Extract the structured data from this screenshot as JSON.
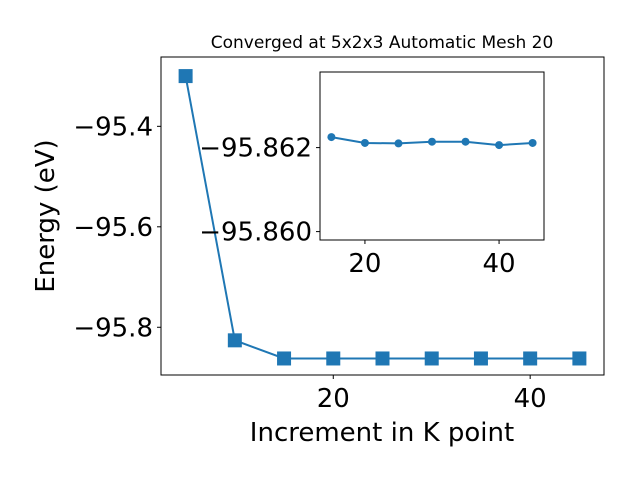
{
  "chart_data": [
    {
      "type": "line",
      "title": "Converged at 5x2x3 Automatic Mesh 20",
      "xlabel": "Increment in K point",
      "ylabel": "Energy (eV)",
      "xlim": [
        2.5,
        47.5
      ],
      "ylim": [
        -95.895,
        -95.262
      ],
      "grid": false,
      "x": [
        5,
        10,
        15,
        20,
        25,
        30,
        35,
        40,
        45
      ],
      "series": [
        {
          "values": [
            -95.3,
            -95.826,
            -95.8621,
            -95.8621,
            -95.8621,
            -95.8621,
            -95.8621,
            -95.8621,
            -95.8621
          ],
          "color": "#1f77b4",
          "marker": "square"
        }
      ],
      "xticks": [
        {
          "value": 20,
          "label": "20"
        },
        {
          "value": 40,
          "label": "40"
        }
      ],
      "yticks": [
        {
          "value": -95.4,
          "label": "−95.4"
        },
        {
          "value": -95.6,
          "label": "−95.6"
        },
        {
          "value": -95.8,
          "label": "−95.8"
        }
      ]
    },
    {
      "type": "line",
      "inset": true,
      "xlim": [
        13.3,
        46.7
      ],
      "ylim": [
        -95.8598,
        -95.8638
      ],
      "grid": false,
      "x": [
        15,
        20,
        25,
        30,
        35,
        40,
        45
      ],
      "series": [
        {
          "values": [
            -95.86225,
            -95.86211,
            -95.8621,
            -95.86214,
            -95.86214,
            -95.86206,
            -95.86211
          ],
          "color": "#1f77b4",
          "marker": "circle"
        }
      ],
      "xticks": [
        {
          "value": 20,
          "label": "20"
        },
        {
          "value": 40,
          "label": "40"
        }
      ],
      "yticks": [
        {
          "value": -95.862,
          "label": "−95.862"
        },
        {
          "value": -95.86,
          "label": "−95.860"
        }
      ]
    }
  ]
}
